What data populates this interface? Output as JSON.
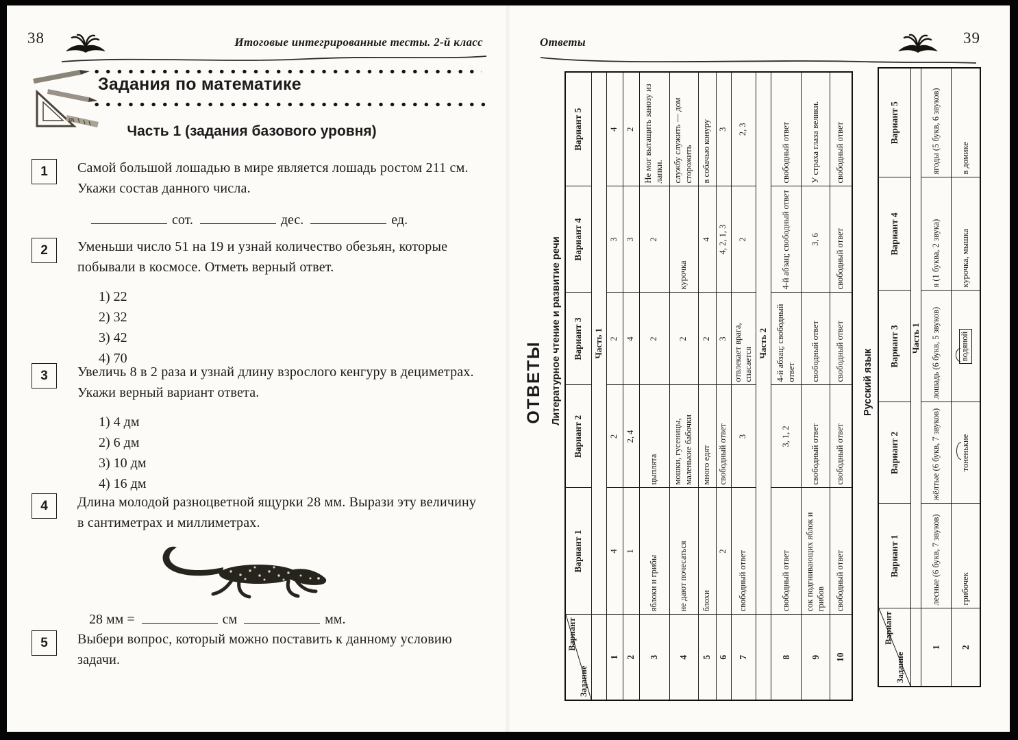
{
  "colors": {
    "ink": "#1b1b1b",
    "page": "#fcfbf8",
    "frame": "#050505"
  },
  "icons": {
    "left_header": "open-book-icon",
    "right_header": "open-book-icon",
    "heading_art": "pencils-and-ruler-art",
    "task4_image": "lizard-photo"
  },
  "left_page": {
    "page_number": "38",
    "running_title": "Итоговые интегрированные тесты. 2-й класс",
    "section_title": "Задания по математике",
    "part_title": "Часть 1 (задания базового уровня)",
    "tasks": [
      {
        "number": "1",
        "text": "Самой большой лошадью в мире является лошадь ростом 211 см. Укажи состав данного числа.",
        "fill_line": [
          {
            "type": "blank"
          },
          {
            "type": "label",
            "text": "сот."
          },
          {
            "type": "blank"
          },
          {
            "type": "label",
            "text": "дес."
          },
          {
            "type": "blank"
          },
          {
            "type": "label",
            "text": "ед."
          }
        ]
      },
      {
        "number": "2",
        "text": "Уменьши число 51 на 19 и узнай количество обезьян, которые побывали в космосе. Отметь верный ответ.",
        "options": [
          "1) 22",
          "2) 32",
          "3) 42",
          "4) 70"
        ]
      },
      {
        "number": "3",
        "text": "Увеличь 8 в 2 раза и узнай длину взрослого кенгуру в дециметрах. Укажи верный вариант ответа.",
        "options": [
          "1) 4 дм",
          "2) 6 дм",
          "3) 10 дм",
          "4) 16 дм"
        ]
      },
      {
        "number": "4",
        "text": "Длина молодой разноцветной ящурки 28 мм. Вырази эту величину в сантиметрах и миллиметрах.",
        "image": "lizard",
        "fill_line": [
          {
            "type": "label",
            "text": "28 мм ="
          },
          {
            "type": "blank"
          },
          {
            "type": "label",
            "text": "см"
          },
          {
            "type": "blank"
          },
          {
            "type": "label",
            "text": "мм."
          }
        ]
      },
      {
        "number": "5",
        "text": "Выбери вопрос, который можно поставить к данному условию задачи."
      }
    ]
  },
  "right_page": {
    "page_number": "39",
    "running_title": "Ответы",
    "heading": "ОТВЕТЫ",
    "tables": [
      {
        "caption": "Литературное чтение и развитие речи",
        "corner": {
          "top": "Вариант",
          "bottom": "Задание"
        },
        "columns": [
          "Вариант 1",
          "Вариант 2",
          "Вариант 3",
          "Вариант 4",
          "Вариант 5"
        ],
        "sections": [
          {
            "label": "Часть 1",
            "rows": [
              {
                "num": "1",
                "answers": [
                  "4",
                  "2",
                  "2",
                  "3",
                  "4"
                ]
              },
              {
                "num": "2",
                "answers": [
                  "1",
                  "2, 4",
                  "4",
                  "3",
                  "2"
                ]
              },
              {
                "num": "3",
                "answers": [
                  "яблоки и грибы",
                  "цыплята",
                  "2",
                  "2",
                  "Не мог вытащить занозу из лапки."
                ]
              },
              {
                "num": "4",
                "answers": [
                  "не дают почесаться",
                  "мошки, гусеницы, маленькие бабочки",
                  "2",
                  "курочка",
                  "службу служить — дом сторожить"
                ]
              },
              {
                "num": "5",
                "answers": [
                  "блохи",
                  "много едят",
                  "2",
                  "4",
                  "в собачью конуру"
                ]
              },
              {
                "num": "6",
                "answers": [
                  "2",
                  "свободный ответ",
                  "3",
                  "4, 2, 1, 3",
                  "3"
                ]
              },
              {
                "num": "7",
                "answers": [
                  "свободный ответ",
                  "3",
                  "отвлекает врага, спасается",
                  "2",
                  "2, 3"
                ]
              }
            ]
          },
          {
            "label": "Часть 2",
            "rows": [
              {
                "num": "8",
                "answers": [
                  "свободный ответ",
                  "3, 1, 2",
                  "4-й абзац; свободный ответ",
                  "4-й абзац; свободный ответ",
                  "свободный ответ"
                ]
              },
              {
                "num": "9",
                "answers": [
                  "сок подгнивающих яблок и грибов",
                  "свободный ответ",
                  "свободный ответ",
                  "3, 6",
                  "У страха глаза велики."
                ]
              },
              {
                "num": "10",
                "answers": [
                  "свободный ответ",
                  "свободный ответ",
                  "свободный ответ",
                  "свободный ответ",
                  "свободный ответ"
                ]
              }
            ]
          }
        ]
      },
      {
        "caption": "Русский язык",
        "corner": {
          "top": "Вариант",
          "bottom": "Задание"
        },
        "columns": [
          "Вариант 1",
          "Вариант 2",
          "Вариант 3",
          "Вариант 4",
          "Вариант 5"
        ],
        "sections": [
          {
            "label": "Часть 1",
            "rows": [
              {
                "num": "1",
                "answers": [
                  "лесные (6 букв, 7 звуков)",
                  "жёлтые (6 букв, 7 звуков)",
                  "лошадь (6 букв, 5 звуков)",
                  "я (1 буква, 2 звука)",
                  "ягоды (5 букв, 6 звуков)"
                ]
              },
              {
                "num": "2",
                "answers": [
                  "грибочек",
                  {
                    "pre": "тон",
                    "arc": "еньк",
                    "post": "ие"
                  },
                  {
                    "boxed": true,
                    "pre": "",
                    "arc": "вод",
                    "post": "яной"
                  },
                  "курочка, мышка",
                  "в домике"
                ]
              }
            ]
          }
        ]
      }
    ]
  }
}
